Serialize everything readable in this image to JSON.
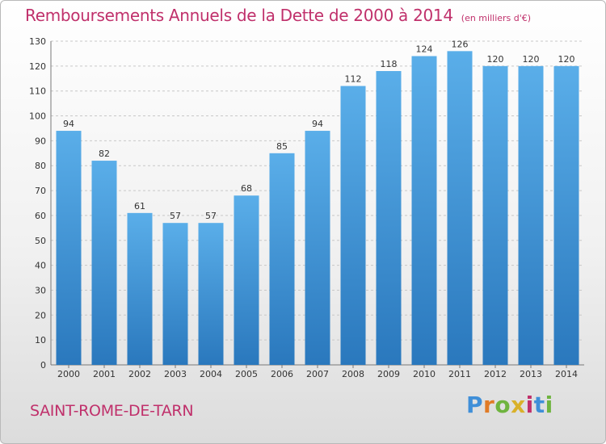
{
  "header": {
    "title": "Remboursements Annuels de la Dette de 2000 à 2014",
    "unit": "(en milliers d'€)"
  },
  "footer": {
    "commune": "SAINT-ROME-DE-TARN",
    "logo": "Proxiti",
    "logo_colors": [
      "#3f8fd8",
      "#e07b27",
      "#6fb43f",
      "#d9b12a",
      "#c0306b",
      "#3f8fd8",
      "#6fb43f"
    ]
  },
  "colors": {
    "bar_top": "#5aaee9",
    "bar_bottom": "#2a78bd",
    "text_accent": "#c0306b",
    "grid": "#c8c8c8"
  },
  "chart_data": {
    "type": "bar",
    "categories": [
      "2000",
      "2001",
      "2002",
      "2003",
      "2004",
      "2005",
      "2006",
      "2007",
      "2008",
      "2009",
      "2010",
      "2011",
      "2012",
      "2013",
      "2014"
    ],
    "values": [
      94,
      82,
      61,
      57,
      57,
      68,
      85,
      94,
      112,
      118,
      124,
      126,
      120,
      120,
      120
    ],
    "ylim": [
      0,
      130
    ],
    "yticks": [
      0,
      10,
      20,
      30,
      40,
      50,
      60,
      70,
      80,
      90,
      100,
      110,
      120,
      130
    ],
    "grid": true,
    "data_labels": true
  }
}
